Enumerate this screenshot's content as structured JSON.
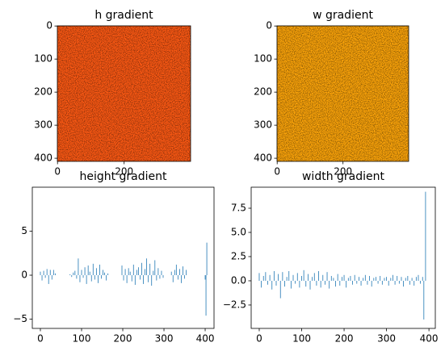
{
  "chart_data": [
    {
      "type": "image",
      "title": "h gradient",
      "color": "#ff5a14",
      "xlim": [
        -0.5,
        399.5
      ],
      "xticks": [
        0,
        200
      ],
      "ylim": [
        409.5,
        -0.5
      ],
      "yticks": [
        0,
        100,
        200,
        300,
        400
      ]
    },
    {
      "type": "image",
      "title": "w gradient",
      "color": "#ffa60a",
      "xlim": [
        -0.5,
        399.5
      ],
      "xticks": [
        0,
        200
      ],
      "ylim": [
        409.5,
        -0.5
      ],
      "yticks": [
        0,
        100,
        200,
        300,
        400
      ]
    },
    {
      "type": "bar",
      "title": "height gradient",
      "color": "#1f77b4",
      "xlim": [
        -19.6,
        421.5
      ],
      "xticks": [
        0,
        100,
        200,
        300,
        400
      ],
      "ylim": [
        -6.05,
        10
      ],
      "yticks": [
        5,
        0,
        {
          "value": -5,
          "label": "−5"
        }
      ],
      "x": [
        0,
        4,
        8,
        12,
        16,
        20,
        24,
        28,
        32,
        36,
        72,
        76,
        80,
        84,
        88,
        92,
        96,
        100,
        104,
        108,
        112,
        116,
        120,
        124,
        128,
        132,
        136,
        140,
        144,
        148,
        152,
        156,
        160,
        164,
        198,
        202,
        206,
        210,
        214,
        218,
        222,
        226,
        230,
        234,
        238,
        242,
        246,
        250,
        254,
        258,
        262,
        266,
        270,
        274,
        278,
        282,
        286,
        290,
        294,
        298,
        318,
        322,
        326,
        330,
        334,
        338,
        342,
        346,
        350,
        354,
        400,
        402,
        404
      ],
      "values": [
        0.4,
        -0.6,
        0.5,
        -0.3,
        0.7,
        -1.0,
        0.6,
        -0.5,
        0.6,
        0.2,
        0.1,
        -0.2,
        0.3,
        0.5,
        -0.4,
        1.9,
        -0.8,
        0.6,
        -0.3,
        0.9,
        -1.0,
        1.1,
        0.4,
        -0.7,
        1.3,
        -0.5,
        0.8,
        -0.9,
        1.2,
        -0.4,
        0.6,
        0.3,
        -0.6,
        0.2,
        1.1,
        -0.6,
        0.7,
        -0.9,
        0.8,
        0.4,
        -0.7,
        1.2,
        -1.1,
        0.6,
        0.9,
        -0.5,
        1.4,
        -1.0,
        0.7,
        1.9,
        -0.8,
        1.3,
        -1.2,
        0.5,
        1.7,
        -0.6,
        0.8,
        -0.4,
        0.5,
        -0.3,
        0.4,
        -0.8,
        0.6,
        1.2,
        -0.5,
        0.7,
        -0.9,
        1.0,
        -0.4,
        0.6,
        -0.5,
        -4.6,
        3.7
      ]
    },
    {
      "type": "bar",
      "title": "width gradient",
      "color": "#1f77b4",
      "xlim": [
        -19,
        415
      ],
      "xticks": [
        0,
        100,
        200,
        300,
        400
      ],
      "ylim": [
        -4.92,
        9.67
      ],
      "yticks": [
        7.5,
        {
          "value": 5,
          "label": "5.0"
        },
        2.5,
        {
          "value": 0,
          "label": "0.0"
        },
        {
          "value": -2.5,
          "label": "−2.5"
        }
      ],
      "x": [
        0,
        5,
        10,
        15,
        20,
        25,
        30,
        35,
        40,
        45,
        50,
        55,
        60,
        65,
        70,
        75,
        80,
        85,
        90,
        95,
        100,
        105,
        110,
        115,
        120,
        125,
        130,
        135,
        140,
        145,
        150,
        155,
        160,
        165,
        170,
        175,
        180,
        185,
        190,
        195,
        200,
        205,
        210,
        215,
        220,
        225,
        230,
        235,
        240,
        245,
        250,
        255,
        260,
        265,
        270,
        275,
        280,
        285,
        290,
        295,
        300,
        305,
        310,
        315,
        320,
        325,
        330,
        335,
        340,
        345,
        350,
        355,
        360,
        365,
        370,
        375,
        380,
        385,
        388,
        392
      ],
      "values": [
        0.8,
        -0.7,
        0.5,
        0.9,
        -0.4,
        0.6,
        -0.9,
        1.0,
        -0.5,
        0.7,
        -1.8,
        0.9,
        -0.6,
        0.4,
        1.0,
        -0.8,
        0.6,
        -0.3,
        0.8,
        -0.7,
        0.5,
        1.1,
        -0.6,
        0.7,
        -0.9,
        0.4,
        0.8,
        -0.5,
        1.0,
        -0.7,
        0.6,
        -0.4,
        0.9,
        -0.8,
        0.5,
        0.3,
        -0.6,
        0.7,
        -0.5,
        0.4,
        0.6,
        -0.7,
        0.3,
        0.5,
        -0.4,
        0.6,
        -0.3,
        0.4,
        -0.5,
        0.3,
        0.6,
        -0.4,
        0.5,
        -0.6,
        0.3,
        0.4,
        -0.3,
        0.5,
        -0.4,
        0.3,
        0.4,
        -0.5,
        0.3,
        0.6,
        -0.4,
        0.5,
        -0.3,
        0.4,
        -0.6,
        0.3,
        0.5,
        -0.4,
        0.3,
        -0.5,
        0.4,
        0.6,
        -0.3,
        0.4,
        -4.0,
        9.2
      ]
    }
  ]
}
